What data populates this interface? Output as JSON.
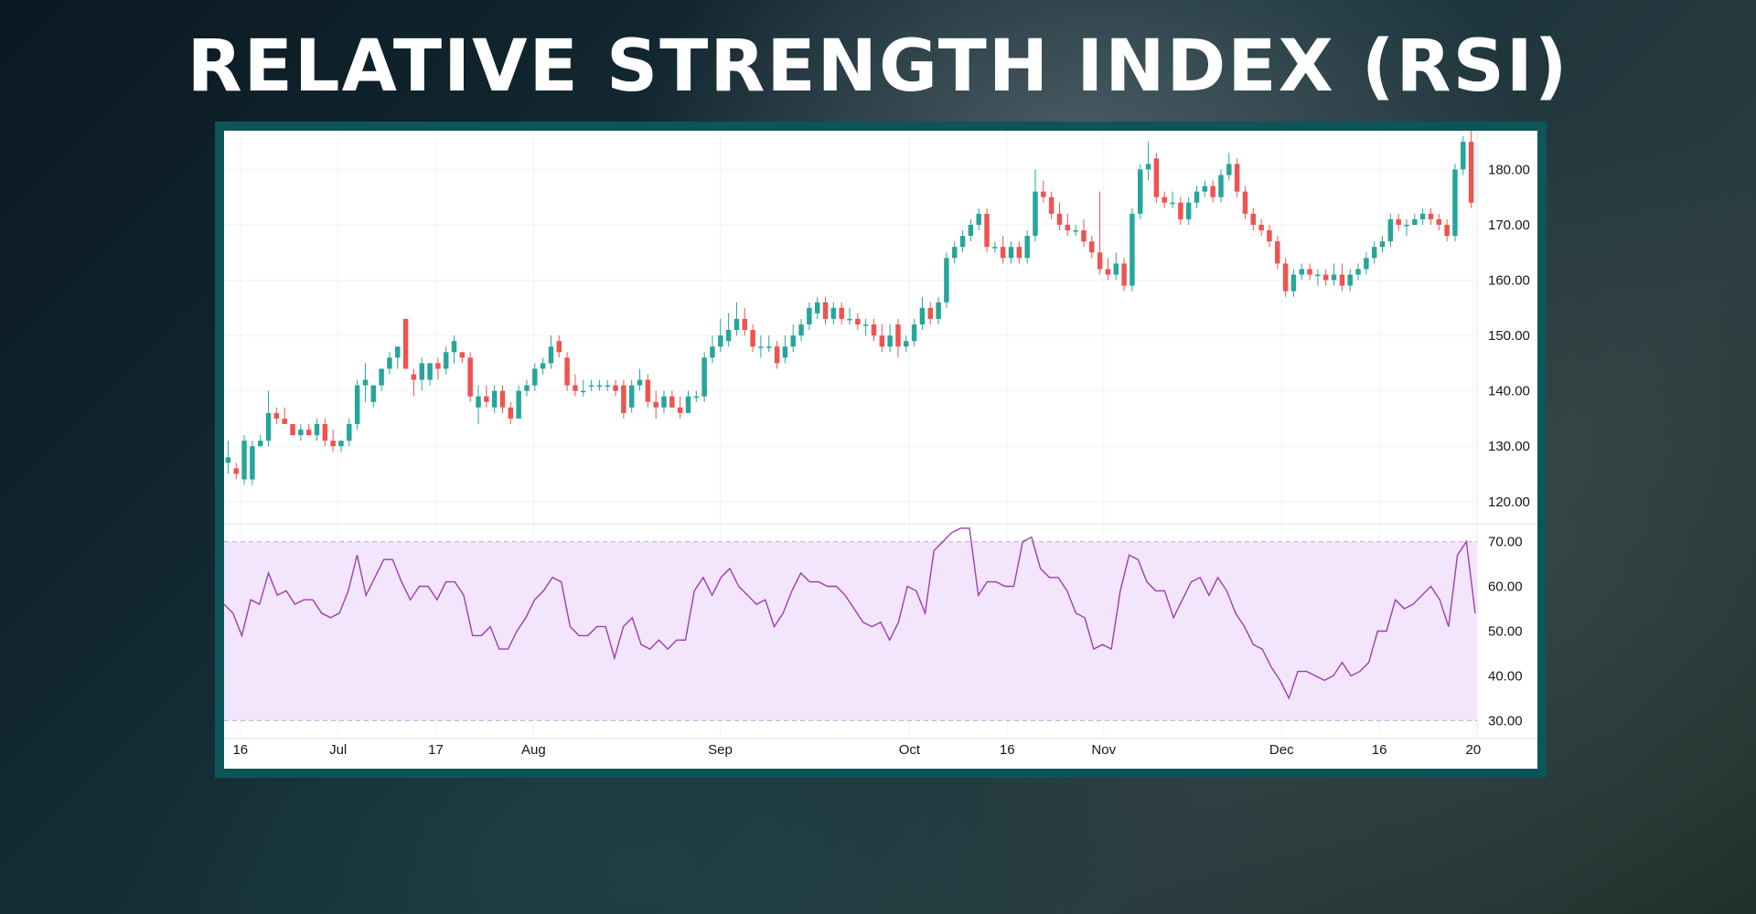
{
  "title": "RELATIVE STRENGTH INDEX (RSI)",
  "colors": {
    "up": "#26a69a",
    "down": "#ef5350",
    "rsi_line": "#9c3fb3",
    "rsi_band_fill": "#f3e5fb",
    "frame": "#0d5559"
  },
  "chart_data": [
    {
      "type": "candlestick",
      "title": "",
      "price_axis_ticks": [
        "120.00",
        "130.00",
        "140.00",
        "150.00",
        "160.00",
        "170.00",
        "180.00"
      ],
      "ylim": [
        116,
        187
      ],
      "x_axis_labels": [
        "16",
        "Jul",
        "17",
        "Aug",
        "Sep",
        "Oct",
        "16",
        "Nov",
        "Dec",
        "16",
        "20"
      ],
      "grid": true,
      "candles": [
        [
          127,
          128,
          131,
          125
        ],
        [
          126,
          125,
          127,
          124
        ],
        [
          124,
          131,
          132,
          123
        ],
        [
          124,
          130,
          131,
          123
        ],
        [
          130,
          131,
          132,
          130
        ],
        [
          131,
          136,
          140,
          130
        ],
        [
          136,
          135,
          137,
          134
        ],
        [
          135,
          134,
          137,
          134
        ],
        [
          134,
          132,
          134,
          132
        ],
        [
          132,
          133,
          134,
          131
        ],
        [
          133,
          132,
          134,
          132
        ],
        [
          132,
          134,
          135,
          131
        ],
        [
          134,
          131,
          135,
          130
        ],
        [
          131,
          130,
          133,
          129
        ],
        [
          130,
          131,
          131,
          129
        ],
        [
          131,
          134,
          135,
          130
        ],
        [
          134,
          141,
          142,
          133
        ],
        [
          141,
          142,
          145,
          138
        ],
        [
          138,
          141,
          141,
          137
        ],
        [
          141,
          144,
          144,
          140
        ],
        [
          144,
          146,
          147,
          143
        ],
        [
          146,
          148,
          148,
          144
        ],
        [
          153,
          144,
          153,
          144
        ],
        [
          143,
          142,
          144,
          139
        ],
        [
          142,
          145,
          146,
          140
        ],
        [
          142,
          145,
          145,
          141
        ],
        [
          145,
          144,
          146,
          142
        ],
        [
          144,
          147,
          148,
          143
        ],
        [
          147,
          149,
          150,
          145
        ],
        [
          147,
          146,
          147,
          145
        ],
        [
          146,
          139,
          147,
          138
        ],
        [
          137,
          139,
          141,
          134
        ],
        [
          139,
          138,
          141,
          137
        ],
        [
          137,
          140,
          141,
          136
        ],
        [
          140,
          137,
          141,
          136
        ],
        [
          137,
          135,
          138,
          134
        ],
        [
          135,
          140,
          141,
          135
        ],
        [
          140,
          141,
          142,
          139
        ],
        [
          141,
          144,
          145,
          140
        ],
        [
          144,
          145,
          146,
          143
        ],
        [
          145,
          148,
          150,
          144
        ],
        [
          149,
          147,
          150,
          146
        ],
        [
          146,
          141,
          147,
          140
        ],
        [
          141,
          140,
          143,
          139
        ],
        [
          140,
          140,
          142,
          139
        ],
        [
          141,
          141,
          142,
          140
        ],
        [
          141,
          141,
          142,
          140
        ],
        [
          141,
          141,
          142,
          140
        ],
        [
          141,
          140,
          142,
          139
        ],
        [
          141,
          136,
          142,
          135
        ],
        [
          137,
          141,
          142,
          136
        ],
        [
          141,
          142,
          144,
          140
        ],
        [
          142,
          138,
          143,
          137
        ],
        [
          138,
          137,
          140,
          135
        ],
        [
          137,
          139,
          140,
          136
        ],
        [
          139,
          137,
          140,
          137
        ],
        [
          137,
          136,
          139,
          135
        ],
        [
          136,
          139,
          140,
          136
        ],
        [
          139,
          139,
          140,
          138
        ],
        [
          139,
          146,
          147,
          138
        ],
        [
          146,
          148,
          150,
          145
        ],
        [
          148,
          150,
          153,
          147
        ],
        [
          149,
          151,
          154,
          148
        ],
        [
          151,
          153,
          156,
          150
        ],
        [
          153,
          151,
          155,
          150
        ],
        [
          151,
          148,
          152,
          147
        ],
        [
          148,
          148,
          150,
          146
        ],
        [
          148,
          148,
          150,
          147
        ],
        [
          148,
          145,
          149,
          144
        ],
        [
          146,
          148,
          150,
          145
        ],
        [
          148,
          150,
          152,
          147
        ],
        [
          150,
          152,
          153,
          149
        ],
        [
          152,
          155,
          156,
          151
        ],
        [
          154,
          156,
          157,
          153
        ],
        [
          156,
          153,
          157,
          152
        ],
        [
          153,
          155,
          156,
          152
        ],
        [
          155,
          153,
          156,
          152
        ],
        [
          153,
          153,
          155,
          152
        ],
        [
          153,
          152,
          154,
          151
        ],
        [
          152,
          152,
          153,
          150
        ],
        [
          152,
          150,
          153,
          149
        ],
        [
          150,
          148,
          152,
          147
        ],
        [
          148,
          150,
          152,
          147
        ],
        [
          152,
          148,
          153,
          146
        ],
        [
          148,
          149,
          150,
          147
        ],
        [
          149,
          152,
          153,
          148
        ],
        [
          152,
          155,
          157,
          151
        ],
        [
          155,
          153,
          156,
          152
        ],
        [
          153,
          156,
          157,
          152
        ],
        [
          156,
          164,
          165,
          155
        ],
        [
          164,
          166,
          167,
          163
        ],
        [
          166,
          168,
          169,
          165
        ],
        [
          168,
          170,
          171,
          167
        ],
        [
          170,
          172,
          173,
          169
        ],
        [
          172,
          166,
          173,
          165
        ],
        [
          166,
          166,
          167,
          165
        ],
        [
          166,
          164,
          168,
          163
        ],
        [
          164,
          166,
          167,
          163
        ],
        [
          166,
          164,
          167,
          163
        ],
        [
          164,
          168,
          169,
          163
        ],
        [
          168,
          176,
          180,
          167
        ],
        [
          176,
          175,
          178,
          174
        ],
        [
          175,
          172,
          176,
          171
        ],
        [
          172,
          170,
          174,
          169
        ],
        [
          170,
          169,
          172,
          168
        ],
        [
          169,
          169,
          170,
          168
        ],
        [
          169,
          167,
          171,
          166
        ],
        [
          167,
          165,
          168,
          164
        ],
        [
          165,
          162,
          176,
          161
        ],
        [
          162,
          161,
          164,
          160
        ],
        [
          161,
          163,
          165,
          160
        ],
        [
          163,
          159,
          164,
          158
        ],
        [
          159,
          172,
          173,
          158
        ],
        [
          172,
          180,
          181,
          171
        ],
        [
          180,
          181,
          185,
          178
        ],
        [
          182,
          175,
          183,
          174
        ],
        [
          175,
          174,
          176,
          173
        ],
        [
          174,
          174,
          176,
          173
        ],
        [
          174,
          171,
          175,
          170
        ],
        [
          171,
          174,
          175,
          170
        ],
        [
          174,
          176,
          177,
          173
        ],
        [
          176,
          177,
          178,
          175
        ],
        [
          177,
          175,
          178,
          174
        ],
        [
          175,
          179,
          180,
          174
        ],
        [
          179,
          181,
          183,
          178
        ],
        [
          181,
          176,
          182,
          175
        ],
        [
          176,
          172,
          177,
          171
        ],
        [
          172,
          170,
          173,
          169
        ],
        [
          170,
          169,
          171,
          168
        ],
        [
          169,
          167,
          170,
          166
        ],
        [
          167,
          163,
          168,
          162
        ],
        [
          163,
          158,
          164,
          157
        ],
        [
          158,
          161,
          162,
          157
        ],
        [
          161,
          162,
          163,
          160
        ],
        [
          162,
          161,
          163,
          160
        ],
        [
          161,
          161,
          162,
          159
        ],
        [
          161,
          160,
          162,
          159
        ],
        [
          160,
          161,
          163,
          159
        ],
        [
          161,
          159,
          163,
          158
        ],
        [
          159,
          161,
          162,
          158
        ],
        [
          161,
          162,
          163,
          160
        ],
        [
          162,
          164,
          165,
          161
        ],
        [
          164,
          166,
          167,
          163
        ],
        [
          166,
          167,
          168,
          165
        ],
        [
          167,
          171,
          172,
          166
        ],
        [
          171,
          170,
          172,
          169
        ],
        [
          170,
          170,
          171,
          168
        ],
        [
          170,
          171,
          172,
          170
        ],
        [
          171,
          172,
          173,
          170
        ],
        [
          172,
          171,
          173,
          170
        ],
        [
          171,
          170,
          172,
          169
        ],
        [
          170,
          168,
          171,
          167
        ],
        [
          168,
          180,
          181,
          167
        ],
        [
          180,
          185,
          186,
          179
        ],
        [
          185,
          174,
          187,
          173
        ]
      ]
    },
    {
      "type": "line",
      "title": "",
      "axis_ticks": [
        "30.00",
        "40.00",
        "50.00",
        "60.00",
        "70.00"
      ],
      "ylim": [
        26,
        74
      ],
      "band": [
        30,
        70
      ],
      "values": [
        56,
        54,
        49,
        57,
        56,
        63,
        58,
        59,
        56,
        57,
        57,
        54,
        53,
        54,
        59,
        67,
        58,
        62,
        66,
        66,
        61,
        57,
        60,
        60,
        57,
        61,
        61,
        58,
        49,
        49,
        51,
        46,
        46,
        50,
        53,
        57,
        59,
        62,
        61,
        51,
        49,
        49,
        51,
        51,
        44,
        51,
        53,
        47,
        46,
        48,
        46,
        48,
        48,
        59,
        62,
        58,
        62,
        64,
        60,
        58,
        56,
        57,
        51,
        54,
        59,
        63,
        61,
        61,
        60,
        60,
        58,
        55,
        52,
        51,
        52,
        48,
        52,
        60,
        59,
        54,
        68,
        70,
        72,
        73,
        73,
        58,
        61,
        61,
        60,
        60,
        70,
        71,
        64,
        62,
        62,
        59,
        54,
        53,
        46,
        47,
        46,
        59,
        67,
        66,
        61,
        59,
        59,
        53,
        57,
        61,
        62,
        58,
        62,
        59,
        54,
        51,
        47,
        46,
        42,
        39,
        35,
        41,
        41,
        40,
        39,
        40,
        43,
        40,
        41,
        43,
        50,
        50,
        57,
        55,
        56,
        58,
        60,
        57,
        51,
        67,
        70,
        54
      ]
    }
  ]
}
